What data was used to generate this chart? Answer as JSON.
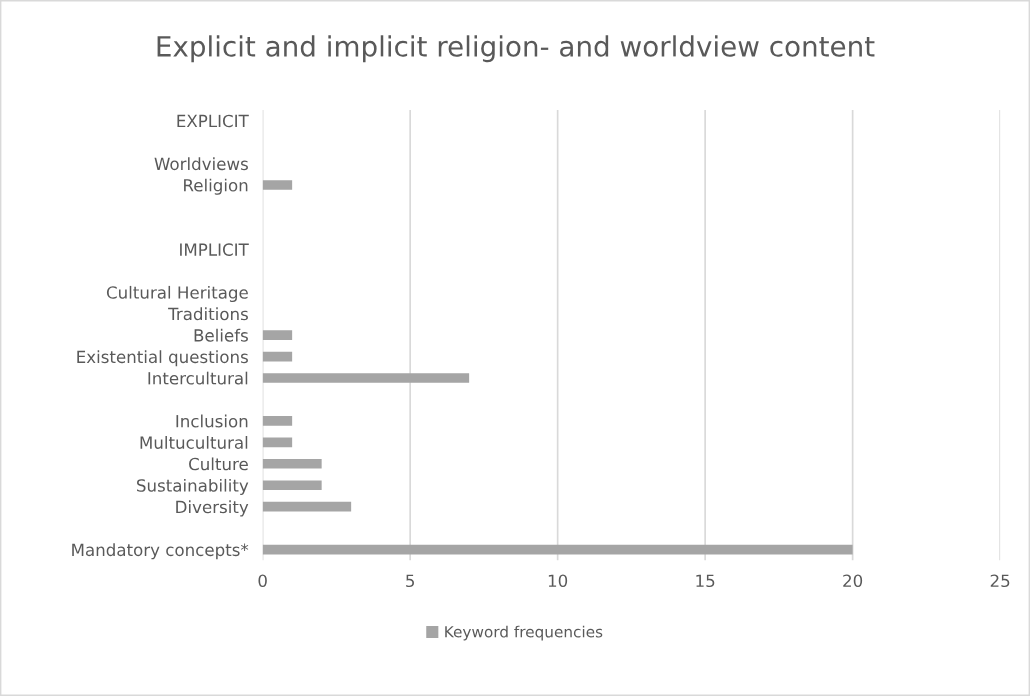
{
  "chart_data": {
    "type": "bar",
    "orientation": "horizontal",
    "title": "Explicit and implicit religion- and worldview content",
    "categories": [
      "EXPLICIT",
      null,
      "Worldviews",
      "Religion",
      null,
      null,
      "IMPLICIT",
      null,
      "Cultural Heritage",
      "Traditions",
      "Beliefs",
      "Existential questions",
      "Intercultural",
      null,
      "Inclusion",
      "Multucultural",
      "Culture",
      "Sustainability",
      "Diversity",
      null,
      "Mandatory concepts*"
    ],
    "series": [
      {
        "name": "Keyword frequencies",
        "color": "#a5a5a5",
        "values": [
          null,
          null,
          0,
          1,
          null,
          null,
          null,
          null,
          0,
          0,
          1,
          1,
          7,
          null,
          1,
          1,
          2,
          2,
          3,
          null,
          20
        ]
      }
    ],
    "xlim": [
      0,
      25
    ],
    "xticks": [
      0,
      5,
      10,
      15,
      20,
      25
    ],
    "grid": "x",
    "legend": "bottom"
  }
}
